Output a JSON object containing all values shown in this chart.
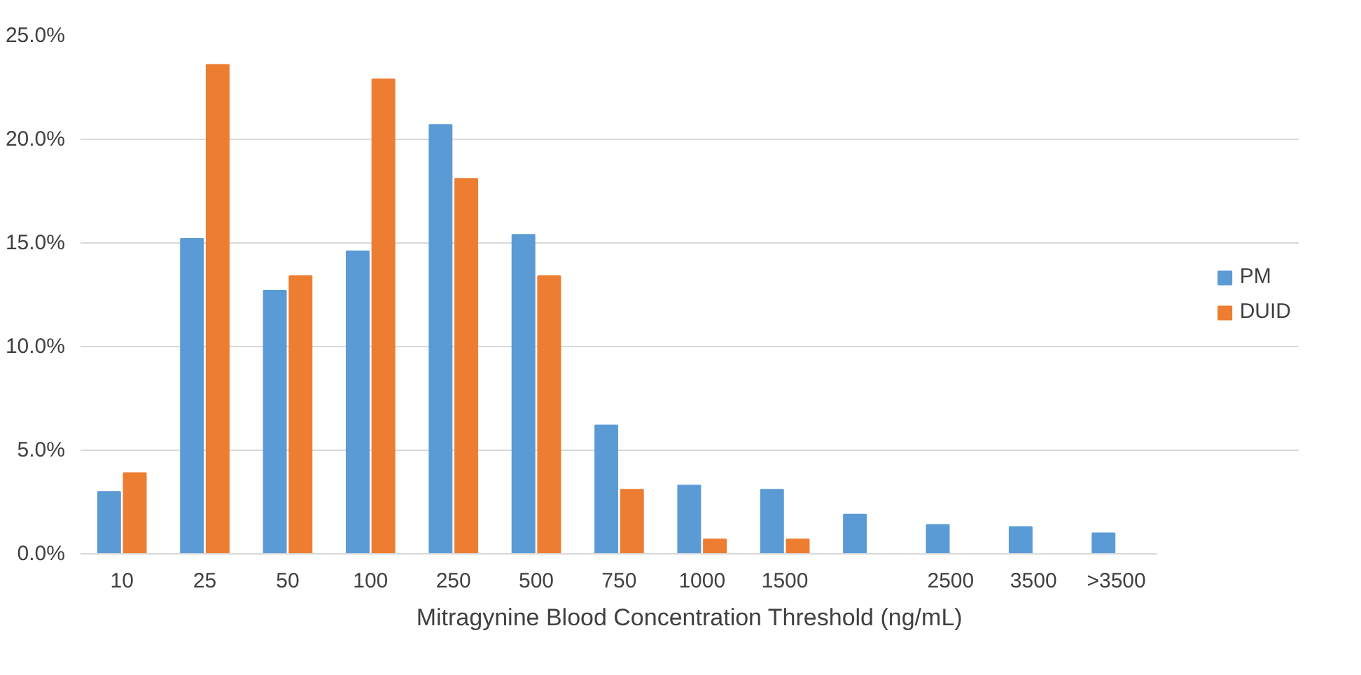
{
  "chart_data": {
    "type": "bar",
    "xlabel": "Mitragynine Blood Concentration Threshold (ng/mL)",
    "categories": [
      "10",
      "25",
      "50",
      "100",
      "250",
      "500",
      "750",
      "1000",
      "1500",
      null,
      "2500",
      "3500",
      ">3500"
    ],
    "series": [
      {
        "name": "PM",
        "color": "#5b9bd5",
        "values": [
          3.0,
          15.2,
          12.7,
          14.6,
          20.7,
          15.4,
          6.2,
          3.3,
          3.1,
          1.9,
          1.4,
          1.3,
          1.0
        ]
      },
      {
        "name": "DUID",
        "color": "#ed7d31",
        "values": [
          3.9,
          23.6,
          13.4,
          22.9,
          18.1,
          13.4,
          3.1,
          0.7,
          0.7,
          null,
          null,
          null,
          null
        ]
      }
    ],
    "ylim": [
      0,
      25
    ],
    "yticks": [
      {
        "value": 0,
        "label": "0.0%"
      },
      {
        "value": 5,
        "label": "5.0%"
      },
      {
        "value": 10,
        "label": "10.0%"
      },
      {
        "value": 15,
        "label": "15.0%"
      },
      {
        "value": 20,
        "label": "20.0%"
      },
      {
        "value": 25,
        "label": "25.0%"
      }
    ],
    "grid": "y",
    "legend": "right"
  }
}
